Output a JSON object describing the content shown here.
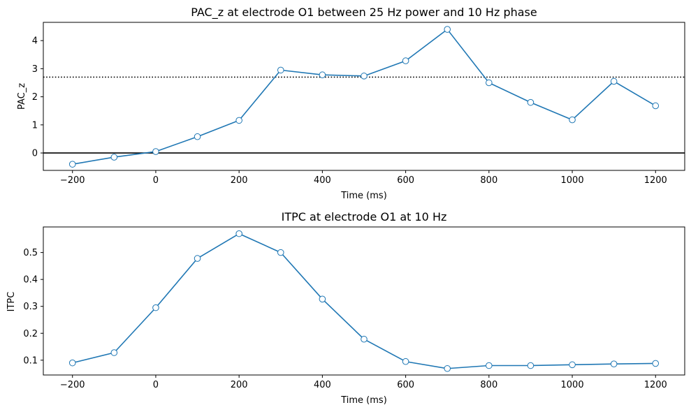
{
  "chart_data": [
    {
      "type": "line",
      "title": "PAC_z at electrode O1 between 25 Hz power and 10 Hz phase",
      "xlabel": "Time (ms)",
      "ylabel": "PAC_z",
      "xlim": [
        -270,
        1270
      ],
      "ylim": [
        -0.62,
        4.65
      ],
      "xticks": [
        -200,
        0,
        200,
        400,
        600,
        800,
        1000,
        1200
      ],
      "xtick_labels": [
        "−200",
        "0",
        "200",
        "400",
        "600",
        "800",
        "1000",
        "1200"
      ],
      "yticks": [
        0,
        1,
        2,
        3,
        4
      ],
      "ytick_labels": [
        "0",
        "1",
        "2",
        "3",
        "4"
      ],
      "grid": false,
      "line_color": "#1f77b4",
      "marker": "open-circle",
      "reference_lines": [
        {
          "y": 0,
          "style": "solid",
          "color": "#000000"
        },
        {
          "y": 2.7,
          "style": "dotted",
          "color": "#000000"
        }
      ],
      "series": [
        {
          "x": [
            -200,
            -100,
            0,
            100,
            200,
            300,
            400,
            500,
            600,
            700,
            800,
            900,
            1000,
            1100,
            1200
          ],
          "y": [
            -0.4,
            -0.15,
            0.05,
            0.58,
            1.16,
            2.95,
            2.78,
            2.74,
            3.28,
            4.4,
            2.5,
            1.8,
            1.18,
            2.55,
            1.68
          ]
        }
      ]
    },
    {
      "type": "line",
      "title": "ITPC at electrode O1 at 10 Hz",
      "xlabel": "Time (ms)",
      "ylabel": "ITPC",
      "xlim": [
        -270,
        1270
      ],
      "ylim": [
        0.045,
        0.595
      ],
      "xticks": [
        -200,
        0,
        200,
        400,
        600,
        800,
        1000,
        1200
      ],
      "xtick_labels": [
        "−200",
        "0",
        "200",
        "400",
        "600",
        "800",
        "1000",
        "1200"
      ],
      "yticks": [
        0.1,
        0.2,
        0.3,
        0.4,
        0.5
      ],
      "ytick_labels": [
        "0.1",
        "0.2",
        "0.3",
        "0.4",
        "0.5"
      ],
      "grid": false,
      "line_color": "#1f77b4",
      "marker": "open-circle",
      "reference_lines": [],
      "series": [
        {
          "x": [
            -200,
            -100,
            0,
            100,
            200,
            300,
            400,
            500,
            600,
            700,
            800,
            900,
            1000,
            1100,
            1200
          ],
          "y": [
            0.09,
            0.128,
            0.295,
            0.478,
            0.57,
            0.5,
            0.327,
            0.178,
            0.095,
            0.069,
            0.08,
            0.08,
            0.083,
            0.086,
            0.088
          ]
        }
      ]
    }
  ]
}
